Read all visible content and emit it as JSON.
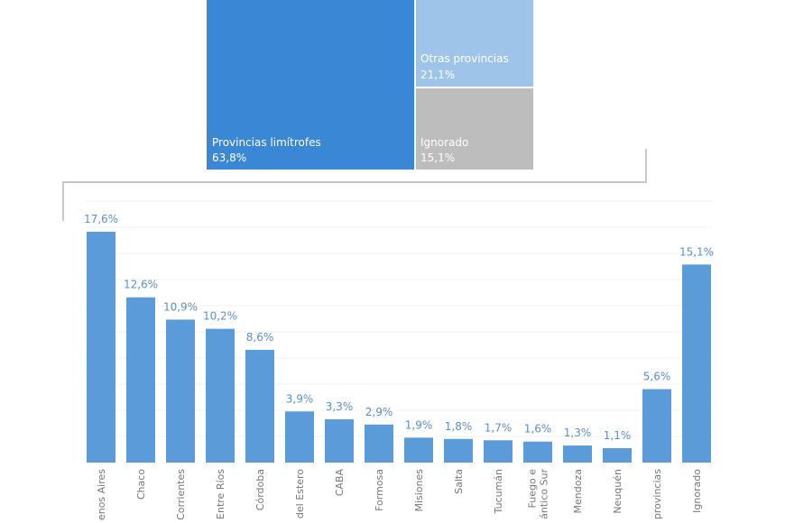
{
  "colors": {
    "primary": "#3a87d6",
    "light": "#9fc4ea",
    "gray": "#bdbdbd",
    "bar": "#5b9bd9",
    "line": "#c8c8c8",
    "grid": "#f0f0f0"
  },
  "treemap": [
    {
      "label": "Provincias limítrofes",
      "value": "63,8%"
    },
    {
      "label": "Otras provincias",
      "value": "21,1%"
    },
    {
      "label": "Ignorado",
      "value": "15,1%"
    }
  ],
  "chart_data": {
    "type": "bar",
    "categories": [
      "enos Aires",
      "Chaco",
      "Corrientes",
      "Entre Ríos",
      "Córdoba",
      "del Estero",
      "CABA",
      "Formosa",
      "Misiones",
      "Salta",
      "Tucumán",
      "Fuego e|ántico Sur",
      "Mendoza",
      "Neuquén",
      "provincias",
      "Ignorado"
    ],
    "values": [
      17.6,
      12.6,
      10.9,
      10.2,
      8.6,
      3.9,
      3.3,
      2.9,
      1.9,
      1.8,
      1.7,
      1.6,
      1.3,
      1.1,
      5.6,
      15.1
    ],
    "labels": [
      "17,6%",
      "12,6%",
      "10,9%",
      "10,2%",
      "8,6%",
      "3,9%",
      "3,3%",
      "2,9%",
      "1,9%",
      "1,8%",
      "1,7%",
      "1,6%",
      "1,3%",
      "1,1%",
      "5,6%",
      "15,1%"
    ],
    "ylim": [
      0,
      20
    ],
    "grid": true,
    "title": "",
    "xlabel": "",
    "ylabel": ""
  }
}
